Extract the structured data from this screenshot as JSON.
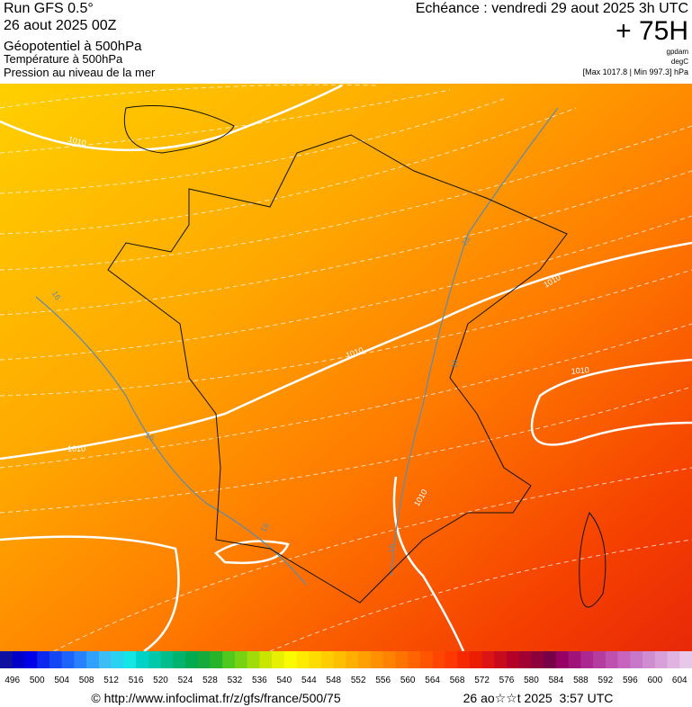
{
  "header": {
    "run": "Run GFS 0.5°",
    "run_date": "26 aout 2025 00Z",
    "layer1": "Géopotentiel à 500hPa",
    "layer2": "Température à 500hPa",
    "layer3": "Pression au niveau de la mer",
    "valid_time": "Echéance : vendredi 29 aout 2025 3h UTC",
    "lead": "+ 75H",
    "unit1": "gpdam",
    "unit2": "degC",
    "pressure_range": "[Max 1017.8 | Min 997.3] hPa"
  },
  "map": {
    "contour_labels": [
      "1010",
      "1010",
      "1010",
      "1010",
      "1010",
      "1010",
      "16",
      "16",
      "16",
      "16",
      "16",
      "16"
    ]
  },
  "colorbar": {
    "labels": [
      496,
      500,
      504,
      508,
      512,
      516,
      520,
      524,
      528,
      532,
      536,
      540,
      544,
      548,
      552,
      556,
      560,
      564,
      568,
      572,
      576,
      580,
      584,
      588,
      592,
      596,
      600,
      604
    ],
    "colors": [
      "#1010a0",
      "#0000c8",
      "#0000e6",
      "#0a28f0",
      "#1446f5",
      "#1e64fa",
      "#2882ff",
      "#32a0ff",
      "#3cbef5",
      "#28d2f0",
      "#14e6e6",
      "#00d2c8",
      "#00c8aa",
      "#00be8c",
      "#00b46e",
      "#00aa50",
      "#14aa3c",
      "#28b428",
      "#50c81e",
      "#78d214",
      "#a0dc0a",
      "#c8e600",
      "#e6f000",
      "#fafa00",
      "#ffeb00",
      "#ffdc00",
      "#ffcd00",
      "#ffbe00",
      "#ffaf00",
      "#ffa000",
      "#ff9100",
      "#ff8200",
      "#ff7300",
      "#ff6400",
      "#ff5500",
      "#ff4600",
      "#ff3700",
      "#f52800",
      "#eb1e00",
      "#dc1414",
      "#c80a1e",
      "#b40028",
      "#a00032",
      "#8c003c",
      "#780046",
      "#960064",
      "#a0147a",
      "#aa2890",
      "#b43ca0",
      "#be50b0",
      "#c864be",
      "#c878c8",
      "#d08cd0",
      "#d8a0d8",
      "#e0b4e0",
      "#e8c8e8"
    ]
  },
  "footer": {
    "url": "© http://www.infoclimat.fr/z/gfs/france/500/75",
    "generated": "26 ao☆☆t 2025  3:57 UTC"
  }
}
